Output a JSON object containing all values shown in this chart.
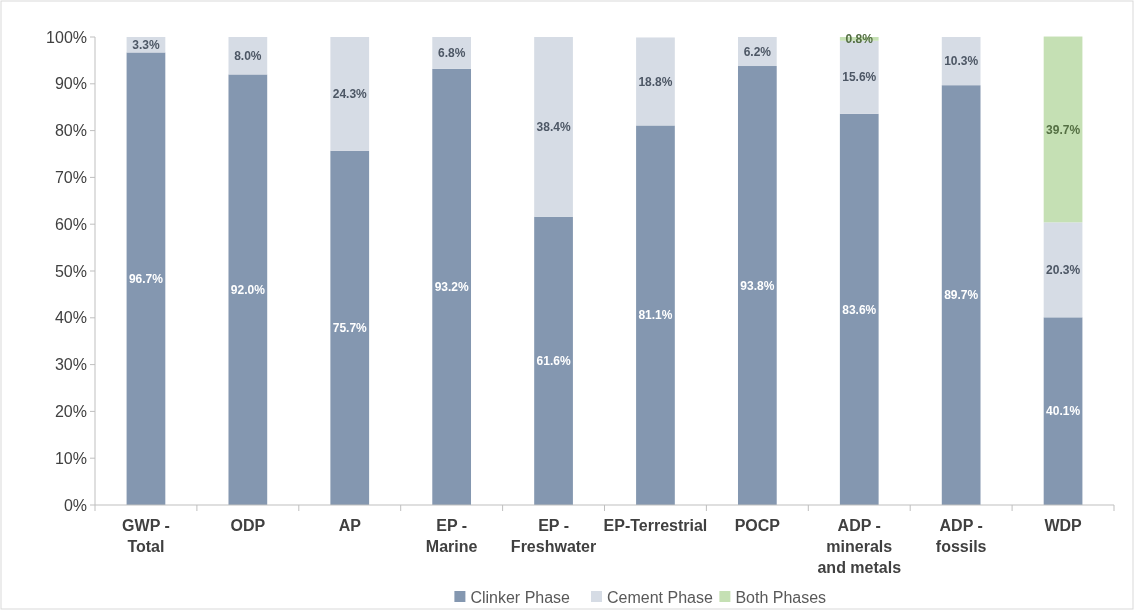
{
  "chart_data": {
    "type": "bar",
    "stacked": true,
    "categories": [
      "GWP - Total",
      "ODP",
      "AP",
      "EP - Marine",
      "EP - Freshwater",
      "EP-Terrestrial",
      "POCP",
      "ADP - minerals and metals",
      "ADP - fossils",
      "WDP"
    ],
    "series": [
      {
        "name": "Clinker Phase",
        "color": "#8497b0",
        "values": [
          96.7,
          92.0,
          75.7,
          93.2,
          61.6,
          81.1,
          93.8,
          83.6,
          89.7,
          40.1
        ],
        "value_labels": [
          "96.7%",
          "92.0%",
          "75.7%",
          "93.2%",
          "61.6%",
          "81.1%",
          "93.8%",
          "83.6%",
          "89.7%",
          "40.1%"
        ]
      },
      {
        "name": "Cement Phase",
        "color": "#d6dce5",
        "values": [
          3.3,
          8.0,
          24.3,
          6.8,
          38.4,
          18.8,
          6.2,
          15.6,
          10.3,
          20.3
        ],
        "value_labels": [
          "3.3%",
          "8.0%",
          "24.3%",
          "6.8%",
          "38.4%",
          "18.8%",
          "6.2%",
          "15.6%",
          "10.3%",
          "20.3%"
        ]
      },
      {
        "name": "Both Phases",
        "color": "#c5e0b4",
        "values": [
          null,
          null,
          null,
          null,
          null,
          null,
          null,
          0.8,
          null,
          39.7
        ],
        "value_labels": [
          null,
          null,
          null,
          null,
          null,
          null,
          null,
          "0.8%",
          null,
          "39.7%"
        ]
      }
    ],
    "ylim": [
      0,
      100
    ],
    "yticks": [
      {
        "value": 0,
        "label": "0%"
      },
      {
        "value": 10,
        "label": "10%"
      },
      {
        "value": 20,
        "label": "20%"
      },
      {
        "value": 30,
        "label": "30%"
      },
      {
        "value": 40,
        "label": "40%"
      },
      {
        "value": 50,
        "label": "50%"
      },
      {
        "value": 60,
        "label": "60%"
      },
      {
        "value": 70,
        "label": "70%"
      },
      {
        "value": 80,
        "label": "80%"
      },
      {
        "value": 90,
        "label": "90%"
      },
      {
        "value": 100,
        "label": "100%"
      }
    ],
    "legend": "bottom"
  }
}
